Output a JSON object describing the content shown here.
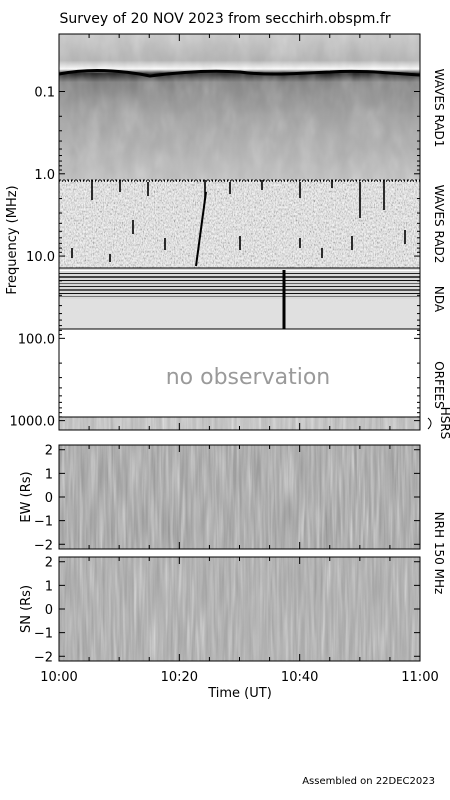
{
  "title": "Survey of 20 NOV 2023 from secchirh.obspm.fr",
  "footer": "Assembled on 22DEC2023",
  "chart_data": [
    {
      "type": "heatmap",
      "name": "dynamic-spectrum",
      "ylabel": "Frequency (MHz)",
      "y_scale": "log",
      "ylim": [
        0.02,
        1300
      ],
      "y_ticks": [
        "0.1",
        "1.0",
        "10.0",
        "100.0",
        "1000.0"
      ],
      "instruments": [
        "WAVES RAD1",
        "WAVES RAD2",
        "NDA",
        "ORFEES",
        "HSRS"
      ],
      "no_data_text": "no observation"
    },
    {
      "type": "heatmap",
      "name": "nrh-ew",
      "ylabel": "EW (Rs)",
      "ylim": [
        -2.2,
        2.2
      ],
      "y_ticks": [
        "2",
        "1",
        "0",
        "−1",
        "−2"
      ]
    },
    {
      "type": "heatmap",
      "name": "nrh-sn",
      "ylabel": "SN (Rs)",
      "ylim": [
        -2.2,
        2.2
      ],
      "y_ticks": [
        "2",
        "1",
        "0",
        "−1",
        "−2"
      ]
    }
  ],
  "nrh_label": "NRH 150 MHz",
  "x_axis": {
    "xlabel": "Time (UT)",
    "ticks": [
      "10:00",
      "10:20",
      "10:40",
      "11:00"
    ],
    "range": [
      "10:00",
      "11:00"
    ]
  }
}
